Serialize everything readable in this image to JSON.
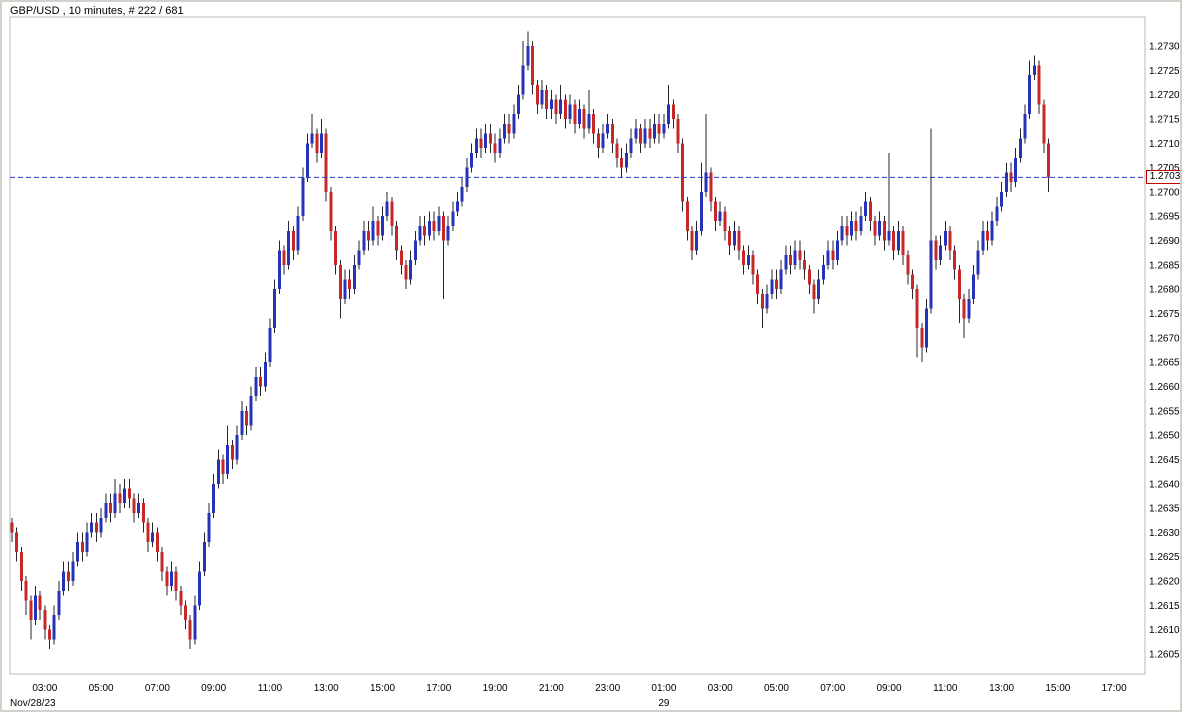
{
  "title": "GBP/USD , 10 minutes, # 222 / 681",
  "current_price": "1.2703",
  "date_label": "Nov/28/23",
  "day_separator_label": "29",
  "colors": {
    "background": "#ffffff",
    "frame": "#d2d0c8",
    "text": "#000000",
    "up": "#2633b8",
    "down": "#c62828",
    "wick": "#26262d",
    "dashed_line": "#2d3bc4",
    "badge_border": "#c40000",
    "plot_border": "#b8b8b8"
  },
  "chart_data": {
    "type": "candlestick",
    "instrument": "GBP/USD",
    "interval": "10 minutes",
    "bar_count_label": "# 222 / 681",
    "price_scale_divisor": 10000,
    "ohlc_order": "open_high_low_close_x10000",
    "y_ticks": [
      "1.2730",
      "1.2725",
      "1.2720",
      "1.2715",
      "1.2710",
      "1.2705",
      "1.2700",
      "1.2695",
      "1.2690",
      "1.2685",
      "1.2680",
      "1.2675",
      "1.2670",
      "1.2665",
      "1.2660",
      "1.2655",
      "1.2650",
      "1.2645",
      "1.2640",
      "1.2635",
      "1.2630",
      "1.2625",
      "1.2620",
      "1.2615",
      "1.2610",
      "1.2605"
    ],
    "x_ticks": [
      {
        "label": "03:00",
        "i": 7
      },
      {
        "label": "05:00",
        "i": 19
      },
      {
        "label": "07:00",
        "i": 31
      },
      {
        "label": "09:00",
        "i": 43
      },
      {
        "label": "11:00",
        "i": 55
      },
      {
        "label": "13:00",
        "i": 67
      },
      {
        "label": "15:00",
        "i": 79
      },
      {
        "label": "17:00",
        "i": 91
      },
      {
        "label": "19:00",
        "i": 103
      },
      {
        "label": "21:00",
        "i": 115
      },
      {
        "label": "23:00",
        "i": 127
      },
      {
        "label": "01:00",
        "i": 139
      },
      {
        "label": "03:00",
        "i": 151
      },
      {
        "label": "05:00",
        "i": 163
      },
      {
        "label": "07:00",
        "i": 175
      },
      {
        "label": "09:00",
        "i": 187
      },
      {
        "label": "11:00",
        "i": 199
      },
      {
        "label": "13:00",
        "i": 211
      },
      {
        "label": "15:00",
        "i": 223
      },
      {
        "label": "17:00",
        "i": 235
      }
    ],
    "day_separator": {
      "label": "29",
      "i": 139
    },
    "candles": [
      [
        12632,
        12633,
        12628,
        12630
      ],
      [
        12630,
        12631,
        12624,
        12626
      ],
      [
        12626,
        12627,
        12618,
        12620
      ],
      [
        12620,
        12621,
        12613,
        12616
      ],
      [
        12616,
        12617,
        12608,
        12612
      ],
      [
        12612,
        12619,
        12611,
        12617
      ],
      [
        12617,
        12618,
        12612,
        12614
      ],
      [
        12614,
        12615,
        12608,
        12610
      ],
      [
        12610,
        12611,
        12606,
        12608
      ],
      [
        12608,
        12615,
        12607,
        12613
      ],
      [
        12613,
        12620,
        12612,
        12618
      ],
      [
        12618,
        12624,
        12617,
        12622
      ],
      [
        12622,
        12624,
        12618,
        12620
      ],
      [
        12620,
        12626,
        12619,
        12624
      ],
      [
        12624,
        12630,
        12623,
        12628
      ],
      [
        12628,
        12630,
        12624,
        12626
      ],
      [
        12626,
        12632,
        12625,
        12630
      ],
      [
        12630,
        12634,
        12629,
        12632
      ],
      [
        12632,
        12634,
        12628,
        12630
      ],
      [
        12630,
        12635,
        12629,
        12633
      ],
      [
        12633,
        12638,
        12632,
        12636
      ],
      [
        12636,
        12638,
        12632,
        12634
      ],
      [
        12634,
        12641,
        12633,
        12638
      ],
      [
        12638,
        12640,
        12634,
        12636
      ],
      [
        12636,
        12641,
        12635,
        12639
      ],
      [
        12639,
        12641,
        12635,
        12637
      ],
      [
        12637,
        12638,
        12632,
        12634
      ],
      [
        12634,
        12638,
        12633,
        12636
      ],
      [
        12636,
        12637,
        12630,
        12632
      ],
      [
        12632,
        12633,
        12626,
        12628
      ],
      [
        12628,
        12632,
        12627,
        12630
      ],
      [
        12630,
        12631,
        12624,
        12626
      ],
      [
        12626,
        12627,
        12620,
        12622
      ],
      [
        12622,
        12623,
        12617,
        12619
      ],
      [
        12619,
        12624,
        12618,
        12622
      ],
      [
        12622,
        12623,
        12616,
        12618
      ],
      [
        12618,
        12619,
        12613,
        12615
      ],
      [
        12615,
        12616,
        12610,
        12612
      ],
      [
        12612,
        12613,
        12606,
        12608
      ],
      [
        12608,
        12617,
        12607,
        12615
      ],
      [
        12615,
        12624,
        12614,
        12622
      ],
      [
        12622,
        12630,
        12621,
        12628
      ],
      [
        12628,
        12636,
        12627,
        12634
      ],
      [
        12634,
        12642,
        12633,
        12640
      ],
      [
        12640,
        12647,
        12639,
        12645
      ],
      [
        12645,
        12646,
        12640,
        12642
      ],
      [
        12642,
        12652,
        12641,
        12648
      ],
      [
        12648,
        12649,
        12643,
        12645
      ],
      [
        12645,
        12652,
        12644,
        12650
      ],
      [
        12650,
        12657,
        12649,
        12655
      ],
      [
        12655,
        12656,
        12650,
        12652
      ],
      [
        12652,
        12660,
        12651,
        12658
      ],
      [
        12658,
        12664,
        12657,
        12662
      ],
      [
        12662,
        12664,
        12658,
        12660
      ],
      [
        12660,
        12667,
        12659,
        12665
      ],
      [
        12665,
        12674,
        12664,
        12672
      ],
      [
        12672,
        12682,
        12671,
        12680
      ],
      [
        12680,
        12690,
        12679,
        12688
      ],
      [
        12688,
        12689,
        12683,
        12685
      ],
      [
        12685,
        12694,
        12684,
        12692
      ],
      [
        12692,
        12693,
        12686,
        12688
      ],
      [
        12688,
        12697,
        12687,
        12695
      ],
      [
        12695,
        12705,
        12694,
        12703
      ],
      [
        12703,
        12712,
        12702,
        12710
      ],
      [
        12710,
        12716,
        12709,
        12712
      ],
      [
        12712,
        12713,
        12706,
        12708
      ],
      [
        12708,
        12715,
        12707,
        12712
      ],
      [
        12712,
        12713,
        12698,
        12700
      ],
      [
        12700,
        12701,
        12690,
        12692
      ],
      [
        12692,
        12693,
        12683,
        12685
      ],
      [
        12685,
        12686,
        12674,
        12678
      ],
      [
        12678,
        12684,
        12677,
        12682
      ],
      [
        12682,
        12684,
        12678,
        12680
      ],
      [
        12680,
        12687,
        12679,
        12685
      ],
      [
        12685,
        12690,
        12684,
        12688
      ],
      [
        12688,
        12694,
        12687,
        12692
      ],
      [
        12692,
        12694,
        12688,
        12690
      ],
      [
        12690,
        12697,
        12689,
        12694
      ],
      [
        12694,
        12695,
        12689,
        12691
      ],
      [
        12691,
        12697,
        12690,
        12695
      ],
      [
        12695,
        12700,
        12694,
        12698
      ],
      [
        12698,
        12699,
        12691,
        12693
      ],
      [
        12693,
        12694,
        12686,
        12688
      ],
      [
        12688,
        12689,
        12683,
        12685
      ],
      [
        12685,
        12686,
        12680,
        12682
      ],
      [
        12682,
        12688,
        12681,
        12686
      ],
      [
        12686,
        12692,
        12685,
        12690
      ],
      [
        12690,
        12695,
        12689,
        12693
      ],
      [
        12693,
        12695,
        12689,
        12691
      ],
      [
        12691,
        12696,
        12690,
        12694
      ],
      [
        12694,
        12696,
        12690,
        12692
      ],
      [
        12692,
        12697,
        12691,
        12695
      ],
      [
        12695,
        12696,
        12678,
        12690
      ],
      [
        12690,
        12695,
        12689,
        12693
      ],
      [
        12693,
        12698,
        12692,
        12696
      ],
      [
        12696,
        12700,
        12695,
        12698
      ],
      [
        12698,
        12703,
        12697,
        12701
      ],
      [
        12701,
        12707,
        12700,
        12705
      ],
      [
        12705,
        12710,
        12704,
        12708
      ],
      [
        12708,
        12713,
        12707,
        12711
      ],
      [
        12711,
        12713,
        12707,
        12709
      ],
      [
        12709,
        12714,
        12708,
        12712
      ],
      [
        12712,
        12714,
        12708,
        12710
      ],
      [
        12710,
        12712,
        12706,
        12708
      ],
      [
        12708,
        12713,
        12707,
        12711
      ],
      [
        12711,
        12716,
        12710,
        12714
      ],
      [
        12714,
        12716,
        12710,
        12712
      ],
      [
        12712,
        12718,
        12711,
        12716
      ],
      [
        12716,
        12722,
        12715,
        12720
      ],
      [
        12720,
        12731,
        12719,
        12726
      ],
      [
        12726,
        12733,
        12725,
        12730
      ],
      [
        12730,
        12731,
        12720,
        12722
      ],
      [
        12722,
        12723,
        12716,
        12718
      ],
      [
        12718,
        12723,
        12717,
        12721
      ],
      [
        12721,
        12722,
        12715,
        12717
      ],
      [
        12717,
        12721,
        12715,
        12719
      ],
      [
        12719,
        12720,
        12714,
        12716
      ],
      [
        12716,
        12722,
        12715,
        12719
      ],
      [
        12719,
        12720,
        12713,
        12715
      ],
      [
        12715,
        12720,
        12714,
        12718
      ],
      [
        12718,
        12719,
        12712,
        12714
      ],
      [
        12714,
        12719,
        12713,
        12717
      ],
      [
        12717,
        12718,
        12711,
        12713
      ],
      [
        12713,
        12721,
        12712,
        12716
      ],
      [
        12716,
        12717,
        12710,
        12712
      ],
      [
        12712,
        12713,
        12707,
        12709
      ],
      [
        12709,
        12714,
        12708,
        12712
      ],
      [
        12712,
        12716,
        12711,
        12714
      ],
      [
        12714,
        12715,
        12708,
        12710
      ],
      [
        12710,
        12711,
        12705,
        12707
      ],
      [
        12707,
        12709,
        12703,
        12705
      ],
      [
        12705,
        12710,
        12704,
        12708
      ],
      [
        12708,
        12713,
        12707,
        12711
      ],
      [
        12711,
        12715,
        12710,
        12713
      ],
      [
        12713,
        12714,
        12708,
        12710
      ],
      [
        12710,
        12715,
        12709,
        12713
      ],
      [
        12713,
        12715,
        12709,
        12711
      ],
      [
        12711,
        12716,
        12710,
        12714
      ],
      [
        12714,
        12716,
        12710,
        12712
      ],
      [
        12712,
        12716,
        12711,
        12714
      ],
      [
        12714,
        12722,
        12713,
        12718
      ],
      [
        12718,
        12719,
        12713,
        12715
      ],
      [
        12715,
        12716,
        12708,
        12710
      ],
      [
        12710,
        12711,
        12696,
        12698
      ],
      [
        12698,
        12699,
        12690,
        12692
      ],
      [
        12692,
        12693,
        12686,
        12688
      ],
      [
        12688,
        12694,
        12687,
        12692
      ],
      [
        12692,
        12706,
        12691,
        12700
      ],
      [
        12700,
        12716,
        12699,
        12704
      ],
      [
        12704,
        12705,
        12696,
        12698
      ],
      [
        12698,
        12699,
        12692,
        12694
      ],
      [
        12694,
        12698,
        12693,
        12696
      ],
      [
        12696,
        12697,
        12690,
        12692
      ],
      [
        12692,
        12693,
        12687,
        12689
      ],
      [
        12689,
        12694,
        12688,
        12692
      ],
      [
        12692,
        12693,
        12686,
        12688
      ],
      [
        12688,
        12689,
        12683,
        12685
      ],
      [
        12685,
        12689,
        12684,
        12687
      ],
      [
        12687,
        12688,
        12681,
        12683
      ],
      [
        12683,
        12684,
        12677,
        12679
      ],
      [
        12679,
        12680,
        12672,
        12676
      ],
      [
        12676,
        12681,
        12675,
        12679
      ],
      [
        12679,
        12684,
        12678,
        12682
      ],
      [
        12682,
        12684,
        12678,
        12680
      ],
      [
        12680,
        12686,
        12679,
        12684
      ],
      [
        12684,
        12689,
        12683,
        12687
      ],
      [
        12687,
        12689,
        12683,
        12685
      ],
      [
        12685,
        12690,
        12684,
        12688
      ],
      [
        12688,
        12690,
        12684,
        12686
      ],
      [
        12686,
        12688,
        12682,
        12684
      ],
      [
        12684,
        12685,
        12679,
        12681
      ],
      [
        12681,
        12682,
        12675,
        12678
      ],
      [
        12678,
        12684,
        12677,
        12682
      ],
      [
        12682,
        12687,
        12681,
        12685
      ],
      [
        12685,
        12690,
        12684,
        12688
      ],
      [
        12688,
        12690,
        12684,
        12686
      ],
      [
        12686,
        12692,
        12685,
        12690
      ],
      [
        12690,
        12695,
        12689,
        12693
      ],
      [
        12693,
        12695,
        12689,
        12691
      ],
      [
        12691,
        12696,
        12690,
        12694
      ],
      [
        12694,
        12696,
        12690,
        12692
      ],
      [
        12692,
        12697,
        12691,
        12695
      ],
      [
        12695,
        12700,
        12694,
        12698
      ],
      [
        12698,
        12699,
        12692,
        12694
      ],
      [
        12694,
        12695,
        12689,
        12691
      ],
      [
        12691,
        12696,
        12690,
        12694
      ],
      [
        12694,
        12695,
        12688,
        12690
      ],
      [
        12690,
        12708,
        12689,
        12692
      ],
      [
        12692,
        12693,
        12686,
        12688
      ],
      [
        12688,
        12694,
        12687,
        12692
      ],
      [
        12692,
        12693,
        12685,
        12687
      ],
      [
        12687,
        12688,
        12681,
        12683
      ],
      [
        12683,
        12684,
        12678,
        12680
      ],
      [
        12680,
        12681,
        12666,
        12672
      ],
      [
        12672,
        12673,
        12665,
        12668
      ],
      [
        12668,
        12678,
        12667,
        12676
      ],
      [
        12676,
        12713,
        12675,
        12690
      ],
      [
        12690,
        12691,
        12684,
        12686
      ],
      [
        12686,
        12691,
        12685,
        12689
      ],
      [
        12689,
        12694,
        12688,
        12692
      ],
      [
        12692,
        12693,
        12686,
        12688
      ],
      [
        12688,
        12689,
        12682,
        12684
      ],
      [
        12684,
        12685,
        12673,
        12678
      ],
      [
        12678,
        12679,
        12670,
        12674
      ],
      [
        12674,
        12680,
        12673,
        12678
      ],
      [
        12678,
        12685,
        12677,
        12683
      ],
      [
        12683,
        12690,
        12682,
        12688
      ],
      [
        12688,
        12694,
        12687,
        12692
      ],
      [
        12692,
        12694,
        12688,
        12690
      ],
      [
        12690,
        12696,
        12689,
        12694
      ],
      [
        12694,
        12699,
        12693,
        12697
      ],
      [
        12697,
        12702,
        12696,
        12700
      ],
      [
        12700,
        12706,
        12699,
        12704
      ],
      [
        12704,
        12706,
        12700,
        12702
      ],
      [
        12702,
        12709,
        12701,
        12707
      ],
      [
        12707,
        12713,
        12706,
        12711
      ],
      [
        12711,
        12718,
        12710,
        12716
      ],
      [
        12716,
        12727,
        12715,
        12724
      ],
      [
        12724,
        12728,
        12723,
        12726
      ],
      [
        12726,
        12727,
        12716,
        12718
      ],
      [
        12718,
        12719,
        12708,
        12710
      ],
      [
        12710,
        12711,
        12700,
        12703
      ]
    ]
  }
}
